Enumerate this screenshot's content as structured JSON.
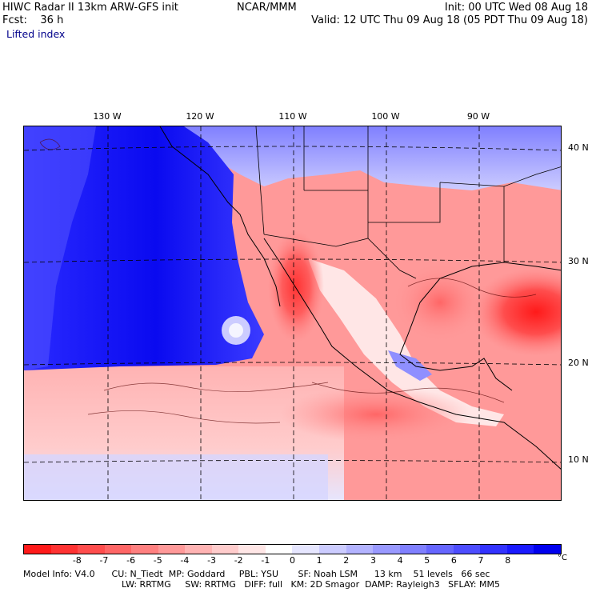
{
  "header": {
    "left_line1": "HIWC Radar II 13km ARW-GFS init",
    "left_line1b": "NCAR/MMM",
    "left_line2": "Fcst:    36 h",
    "field": "Lifted index",
    "right_line1": "Init: 00 UTC Wed 08 Aug 18",
    "right_line2": "Valid: 12 UTC Thu 09 Aug 18 (05 PDT Thu 09 Aug 18)"
  },
  "map": {
    "lon_labels": [
      "130 W",
      "120 W",
      "110 W",
      "100 W",
      "90 W"
    ],
    "lat_labels": [
      "40 N",
      "30 N",
      "20 N",
      "10 N"
    ],
    "gridlines": true
  },
  "colorbar": {
    "colors": [
      "#ff1a1a",
      "#ff3333",
      "#ff4d4d",
      "#ff6666",
      "#ff8080",
      "#ff9999",
      "#ffb3b3",
      "#ffcccc",
      "#ffe6e6",
      "#ffffff",
      "#e6e6ff",
      "#ccccff",
      "#b3b3ff",
      "#9999ff",
      "#8080ff",
      "#6666ff",
      "#4d4dff",
      "#3333ff",
      "#1a1aff",
      "#0000ee"
    ],
    "ticks": [
      "-8",
      "-7",
      "-6",
      "-5",
      "-4",
      "-3",
      "-2",
      "-1",
      "0",
      "1",
      "2",
      "3",
      "4",
      "5",
      "6",
      "7",
      "8"
    ],
    "unit": "°C"
  },
  "footer": {
    "line1": "Model Info: V4.0      CU: N_Tiedt  MP: Goddard     PBL: YSU       SF: Noah LSM      13 km    51 levels   66 sec",
    "line2": "LW: RRTMG     SW: RRTMG   DIFF: full   KM: 2D Smagor  DAMP: Rayleigh3   SFLAY: MM5"
  }
}
